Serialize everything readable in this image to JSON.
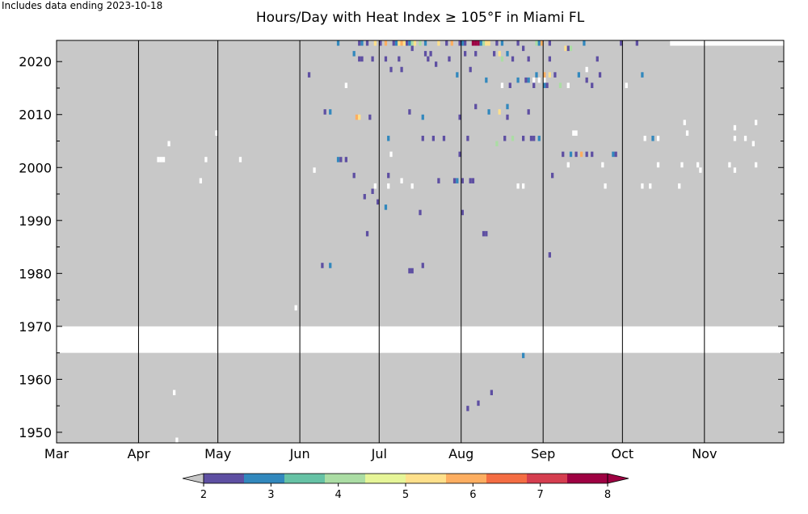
{
  "chart_data": {
    "type": "heatmap",
    "title": "Hours/Day with Heat Index ≥ 105°F in Miami FL",
    "note": "Includes data ending 2023-10-18",
    "xlabel": "",
    "ylabel": "",
    "x_axis": {
      "range_days_since_mar1": [
        0,
        275
      ],
      "month_ticks": [
        {
          "label": "Mar",
          "day": 0
        },
        {
          "label": "Apr",
          "day": 31
        },
        {
          "label": "May",
          "day": 61
        },
        {
          "label": "Jun",
          "day": 92
        },
        {
          "label": "Jul",
          "day": 122
        },
        {
          "label": "Aug",
          "day": 153
        },
        {
          "label": "Sep",
          "day": 184
        },
        {
          "label": "Oct",
          "day": 214
        },
        {
          "label": "Nov",
          "day": 245
        }
      ]
    },
    "y_axis": {
      "range": [
        1948,
        2024
      ],
      "ticks": [
        1950,
        1960,
        1970,
        1980,
        1990,
        2000,
        2010,
        2020
      ]
    },
    "colorbar": {
      "min": 2,
      "max": 8,
      "ticks": [
        2,
        3,
        4,
        5,
        6,
        7,
        8
      ],
      "extend": "both",
      "under_color": "#c8c8c8",
      "colors": [
        "#5e4fa2",
        "#3288bd",
        "#66c2a5",
        "#abdda4",
        "#e6f598",
        "#fee08b",
        "#fdae61",
        "#f46d43",
        "#d53e4f",
        "#9e0142"
      ]
    },
    "background_color": "#c8c8c8",
    "missing_color": "#ffffff",
    "missing_ranges": [
      {
        "year_start": 1965,
        "year_end": 1969,
        "day_start": 0,
        "day_end": 275
      },
      {
        "year_start": 2023,
        "year_end": 2023,
        "day_start": 232,
        "day_end": 275
      }
    ],
    "missing_cells": [
      [
        38,
        2001
      ],
      [
        39,
        2001
      ],
      [
        40,
        2001
      ],
      [
        42,
        2004
      ],
      [
        56,
        2001
      ],
      [
        54,
        1997
      ],
      [
        60,
        2006
      ],
      [
        69,
        2001
      ],
      [
        44,
        1957
      ],
      [
        45,
        1948
      ],
      [
        90,
        1973
      ],
      [
        97,
        1999
      ],
      [
        109,
        2015
      ],
      [
        126,
        2002
      ],
      [
        120,
        1996
      ],
      [
        125,
        1996
      ],
      [
        130,
        1997
      ],
      [
        134,
        1996
      ],
      [
        168,
        2015
      ],
      [
        174,
        1996
      ],
      [
        176,
        1996
      ],
      [
        193,
        2000
      ],
      [
        195,
        2006
      ],
      [
        196,
        2006
      ],
      [
        180,
        2016
      ],
      [
        182,
        2016
      ],
      [
        184,
        2016
      ],
      [
        193,
        2015
      ],
      [
        200,
        2018
      ],
      [
        215,
        2015
      ],
      [
        227,
        2005
      ],
      [
        227,
        2000
      ],
      [
        222,
        2005
      ],
      [
        207,
        1996
      ],
      [
        206,
        2000
      ],
      [
        221,
        1996
      ],
      [
        224,
        1996
      ],
      [
        235,
        1996
      ],
      [
        237,
        2008
      ],
      [
        236,
        2000
      ],
      [
        238,
        2006
      ],
      [
        242,
        2000
      ],
      [
        243,
        1999
      ],
      [
        254,
        2000
      ],
      [
        256,
        1999
      ],
      [
        256,
        2005
      ],
      [
        256,
        2007
      ],
      [
        260,
        2005
      ],
      [
        264,
        2000
      ],
      [
        263,
        2004
      ],
      [
        264,
        2008
      ],
      [
        275,
        2003
      ]
    ],
    "cells": [
      [
        106,
        2023,
        3
      ],
      [
        114,
        2023,
        2
      ],
      [
        115,
        2023,
        3
      ],
      [
        117,
        2023,
        2
      ],
      [
        120,
        2023,
        5
      ],
      [
        122,
        2023,
        2
      ],
      [
        124,
        2023,
        6
      ],
      [
        127,
        2023,
        2
      ],
      [
        128,
        2023,
        3
      ],
      [
        129,
        2023,
        5
      ],
      [
        130,
        2023,
        6
      ],
      [
        131,
        2023,
        5
      ],
      [
        132,
        2023,
        2
      ],
      [
        133,
        2023,
        3
      ],
      [
        134,
        2023,
        4
      ],
      [
        135,
        2023,
        5
      ],
      [
        137,
        2023,
        4
      ],
      [
        139,
        2023,
        3
      ],
      [
        144,
        2023,
        5
      ],
      [
        147,
        2023,
        2
      ],
      [
        149,
        2023,
        6
      ],
      [
        152,
        2023,
        2
      ],
      [
        153,
        2023,
        3
      ],
      [
        154,
        2023,
        2
      ],
      [
        157,
        2023,
        8
      ],
      [
        158,
        2023,
        8
      ],
      [
        159,
        2023,
        8
      ],
      [
        160,
        2023,
        3
      ],
      [
        161,
        2023,
        4
      ],
      [
        162,
        2023,
        5
      ],
      [
        163,
        2023,
        5
      ],
      [
        166,
        2023,
        2
      ],
      [
        168,
        2023,
        3
      ],
      [
        174,
        2023,
        2
      ],
      [
        181,
        2023,
        4
      ],
      [
        182,
        2023,
        3
      ],
      [
        183,
        2023,
        6
      ],
      [
        186,
        2023,
        2
      ],
      [
        199,
        2023,
        3
      ],
      [
        213,
        2023,
        2
      ],
      [
        219,
        2023,
        2
      ],
      [
        112,
        2021,
        3
      ],
      [
        114,
        2020,
        2
      ],
      [
        115,
        2020,
        2
      ],
      [
        119,
        2020,
        2
      ],
      [
        124,
        2020,
        2
      ],
      [
        129,
        2020,
        2
      ],
      [
        134,
        2022,
        2
      ],
      [
        139,
        2021,
        2
      ],
      [
        140,
        2020,
        2
      ],
      [
        141,
        2021,
        2
      ],
      [
        148,
        2020,
        2
      ],
      [
        154,
        2021,
        2
      ],
      [
        158,
        2021,
        2
      ],
      [
        165,
        2021,
        2
      ],
      [
        167,
        2021,
        5
      ],
      [
        168,
        2020,
        4
      ],
      [
        170,
        2021,
        3
      ],
      [
        172,
        2020,
        2
      ],
      [
        176,
        2022,
        2
      ],
      [
        178,
        2020,
        2
      ],
      [
        186,
        2020,
        2
      ],
      [
        192,
        2022,
        5
      ],
      [
        193,
        2022,
        2
      ],
      [
        194,
        2022,
        4
      ],
      [
        204,
        2020,
        2
      ],
      [
        95,
        2017,
        2
      ],
      [
        126,
        2018,
        2
      ],
      [
        130,
        2018,
        2
      ],
      [
        143,
        2019,
        2
      ],
      [
        151,
        2017,
        3
      ],
      [
        156,
        2018,
        2
      ],
      [
        162,
        2016,
        3
      ],
      [
        171,
        2015,
        2
      ],
      [
        174,
        2016,
        3
      ],
      [
        177,
        2016,
        2
      ],
      [
        178,
        2016,
        3
      ],
      [
        180,
        2015,
        2
      ],
      [
        181,
        2017,
        3
      ],
      [
        184,
        2017,
        6
      ],
      [
        184,
        2015,
        3
      ],
      [
        185,
        2015,
        2
      ],
      [
        186,
        2017,
        5
      ],
      [
        188,
        2017,
        2
      ],
      [
        190,
        2015,
        4
      ],
      [
        197,
        2017,
        3
      ],
      [
        200,
        2016,
        2
      ],
      [
        202,
        2015,
        2
      ],
      [
        205,
        2017,
        2
      ],
      [
        221,
        2017,
        3
      ],
      [
        101,
        2010,
        2
      ],
      [
        103,
        2010,
        3
      ],
      [
        113,
        2009,
        6
      ],
      [
        114,
        2009,
        5
      ],
      [
        118,
        2009,
        2
      ],
      [
        133,
        2010,
        2
      ],
      [
        138,
        2009,
        3
      ],
      [
        152,
        2009,
        2
      ],
      [
        158,
        2011,
        2
      ],
      [
        163,
        2010,
        3
      ],
      [
        167,
        2010,
        5
      ],
      [
        170,
        2009,
        2
      ],
      [
        170,
        2011,
        3
      ],
      [
        178,
        2010,
        2
      ],
      [
        125,
        2005,
        3
      ],
      [
        138,
        2005,
        2
      ],
      [
        142,
        2005,
        2
      ],
      [
        146,
        2005,
        2
      ],
      [
        152,
        2002,
        2
      ],
      [
        155,
        2005,
        2
      ],
      [
        166,
        2004,
        4
      ],
      [
        169,
        2005,
        2
      ],
      [
        172,
        2005,
        4
      ],
      [
        176,
        2005,
        2
      ],
      [
        179,
        2005,
        2
      ],
      [
        180,
        2005,
        2
      ],
      [
        182,
        2005,
        3
      ],
      [
        187,
        1998,
        2
      ],
      [
        191,
        2002,
        2
      ],
      [
        194,
        2002,
        3
      ],
      [
        196,
        2002,
        2
      ],
      [
        198,
        2002,
        6
      ],
      [
        200,
        2002,
        2
      ],
      [
        202,
        2002,
        2
      ],
      [
        210,
        2002,
        3
      ],
      [
        211,
        2002,
        2
      ],
      [
        225,
        2005,
        3
      ],
      [
        106,
        2001,
        3
      ],
      [
        107,
        2001,
        2
      ],
      [
        109,
        2001,
        2
      ],
      [
        112,
        1998,
        2
      ],
      [
        116,
        1994,
        2
      ],
      [
        119,
        1995,
        2
      ],
      [
        121,
        1993,
        2
      ],
      [
        124,
        1992,
        3
      ],
      [
        125,
        1998,
        2
      ],
      [
        137,
        1991,
        2
      ],
      [
        144,
        1997,
        2
      ],
      [
        150,
        1997,
        2
      ],
      [
        151,
        1997,
        3
      ],
      [
        153,
        1997,
        2
      ],
      [
        156,
        1997,
        2
      ],
      [
        157,
        1997,
        2
      ],
      [
        153,
        1991,
        2
      ],
      [
        117,
        1987,
        2
      ],
      [
        161,
        1987,
        2
      ],
      [
        162,
        1987,
        2
      ],
      [
        186,
        1983,
        2
      ],
      [
        100,
        1981,
        2
      ],
      [
        103,
        1981,
        3
      ],
      [
        133,
        1980,
        2
      ],
      [
        134,
        1980,
        2
      ],
      [
        138,
        1981,
        2
      ],
      [
        176,
        1964,
        3
      ],
      [
        159,
        1955,
        2
      ],
      [
        164,
        1957,
        2
      ],
      [
        155,
        1954,
        2
      ]
    ]
  }
}
